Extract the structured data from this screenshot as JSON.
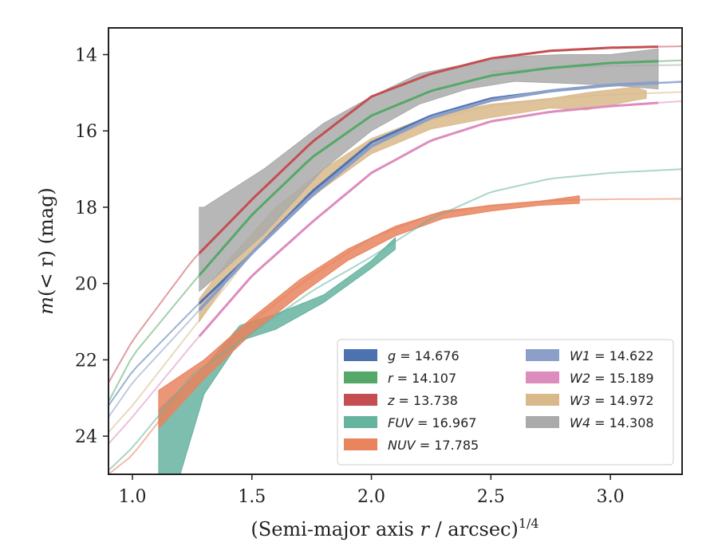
{
  "chart_data": {
    "type": "line",
    "xlabel_main": "(Semi-major axis ",
    "xlabel_var": "r",
    "xlabel_unit": " / arcsec)",
    "xlabel_exp": "1/4",
    "ylabel_main": "m",
    "ylabel_rest": "(< r) (mag)",
    "xlim": [
      0.9,
      3.3
    ],
    "ylim": [
      25.0,
      13.3
    ],
    "y_inverted": true,
    "xticks": [
      1.0,
      1.5,
      2.0,
      2.5,
      3.0
    ],
    "xtick_labels": [
      "1.0",
      "1.5",
      "2.0",
      "2.5",
      "3.0"
    ],
    "yticks": [
      14,
      16,
      18,
      20,
      22,
      24
    ],
    "ytick_labels": [
      "14",
      "16",
      "18",
      "20",
      "22",
      "24"
    ],
    "grid": false,
    "legend_position": "bottom-right",
    "series": [
      {
        "name": "g = 14.676",
        "band": "g",
        "mag": "14.676",
        "color": "#4c72b0",
        "model": [
          [
            0.9,
            23.2
          ],
          [
            1.0,
            22.3
          ],
          [
            1.25,
            20.7
          ],
          [
            1.5,
            19.2
          ],
          [
            1.75,
            17.6
          ],
          [
            2.0,
            16.3
          ],
          [
            2.25,
            15.6
          ],
          [
            2.5,
            15.15
          ],
          [
            2.75,
            14.95
          ],
          [
            3.0,
            14.8
          ],
          [
            3.3,
            14.72
          ]
        ],
        "data_x": [
          1.28,
          3.2
        ],
        "width": 3
      },
      {
        "name": "r = 14.107",
        "band": "r",
        "mag": "14.107",
        "color": "#55a868",
        "model": [
          [
            0.9,
            23.1
          ],
          [
            1.0,
            21.9
          ],
          [
            1.25,
            20.0
          ],
          [
            1.5,
            18.2
          ],
          [
            1.75,
            16.7
          ],
          [
            2.0,
            15.6
          ],
          [
            2.25,
            14.95
          ],
          [
            2.5,
            14.55
          ],
          [
            2.75,
            14.35
          ],
          [
            3.0,
            14.22
          ],
          [
            3.3,
            14.15
          ]
        ],
        "data_x": [
          1.28,
          3.2
        ],
        "width": 3
      },
      {
        "name": "z = 13.738",
        "band": "z",
        "mag": "13.738",
        "color": "#c44e52",
        "model": [
          [
            0.9,
            22.6
          ],
          [
            1.0,
            21.5
          ],
          [
            1.25,
            19.4
          ],
          [
            1.5,
            17.8
          ],
          [
            1.75,
            16.3
          ],
          [
            2.0,
            15.1
          ],
          [
            2.25,
            14.5
          ],
          [
            2.5,
            14.1
          ],
          [
            2.75,
            13.9
          ],
          [
            3.0,
            13.82
          ],
          [
            3.3,
            13.78
          ]
        ],
        "data_x": [
          1.28,
          3.2
        ],
        "width": 3
      },
      {
        "name": "FUV = 16.967",
        "band": "FUV",
        "mag": "16.967",
        "color": "#66b3a0",
        "model": [
          [
            0.9,
            24.9
          ],
          [
            1.0,
            24.3
          ],
          [
            1.25,
            22.4
          ],
          [
            1.5,
            21.3
          ],
          [
            1.75,
            20.2
          ],
          [
            2.0,
            19.3
          ],
          [
            2.25,
            18.3
          ],
          [
            2.5,
            17.6
          ],
          [
            2.75,
            17.25
          ],
          [
            3.0,
            17.1
          ],
          [
            3.3,
            17.0
          ]
        ],
        "band_upper": [
          [
            1.11,
            23.3
          ],
          [
            1.3,
            22.2
          ],
          [
            1.45,
            21.1
          ],
          [
            1.6,
            20.8
          ],
          [
            1.8,
            20.3
          ],
          [
            2.0,
            19.4
          ],
          [
            2.1,
            18.8
          ]
        ],
        "band_lower": [
          [
            1.11,
            25.0
          ],
          [
            1.2,
            25.0
          ],
          [
            1.3,
            22.9
          ],
          [
            1.45,
            21.5
          ],
          [
            1.6,
            21.2
          ],
          [
            1.8,
            20.5
          ],
          [
            2.0,
            19.6
          ],
          [
            2.1,
            19.1
          ]
        ]
      },
      {
        "name": "NUV = 17.785",
        "band": "NUV",
        "mag": "17.785",
        "color": "#e8845e",
        "model": [
          [
            0.9,
            25.0
          ],
          [
            1.0,
            24.5
          ],
          [
            1.25,
            22.5
          ],
          [
            1.5,
            21.0
          ],
          [
            1.75,
            19.8
          ],
          [
            2.0,
            18.8
          ],
          [
            2.25,
            18.2
          ],
          [
            2.5,
            17.95
          ],
          [
            2.75,
            17.82
          ],
          [
            3.0,
            17.79
          ],
          [
            3.3,
            17.78
          ]
        ],
        "band_upper": [
          [
            1.11,
            22.8
          ],
          [
            1.3,
            22.0
          ],
          [
            1.5,
            20.9
          ],
          [
            1.7,
            19.9
          ],
          [
            1.9,
            19.1
          ],
          [
            2.1,
            18.5
          ],
          [
            2.3,
            18.1
          ],
          [
            2.5,
            17.95
          ],
          [
            2.7,
            17.85
          ],
          [
            2.87,
            17.7
          ]
        ],
        "band_lower": [
          [
            1.11,
            23.8
          ],
          [
            1.3,
            22.5
          ],
          [
            1.5,
            21.3
          ],
          [
            1.7,
            20.3
          ],
          [
            1.9,
            19.4
          ],
          [
            2.1,
            18.75
          ],
          [
            2.3,
            18.3
          ],
          [
            2.5,
            18.1
          ],
          [
            2.7,
            17.95
          ],
          [
            2.87,
            17.9
          ]
        ]
      },
      {
        "name": "W1 = 14.622",
        "band": "W1",
        "mag": "14.622",
        "color": "#8c9fc8",
        "model": [
          [
            0.9,
            23.5
          ],
          [
            1.0,
            22.6
          ],
          [
            1.25,
            20.9
          ],
          [
            1.5,
            19.2
          ],
          [
            1.75,
            17.7
          ],
          [
            2.0,
            16.4
          ],
          [
            2.25,
            15.65
          ],
          [
            2.5,
            15.2
          ],
          [
            2.75,
            14.95
          ],
          [
            3.0,
            14.8
          ],
          [
            3.3,
            14.7
          ]
        ],
        "data_x": [
          1.28,
          3.2
        ],
        "width": 4
      },
      {
        "name": "W2 = 15.189",
        "band": "W2",
        "mag": "15.189",
        "color": "#dd8cbe",
        "model": [
          [
            0.9,
            24.2
          ],
          [
            1.0,
            23.5
          ],
          [
            1.25,
            21.6
          ],
          [
            1.5,
            19.8
          ],
          [
            1.75,
            18.4
          ],
          [
            2.0,
            17.1
          ],
          [
            2.25,
            16.25
          ],
          [
            2.5,
            15.75
          ],
          [
            2.75,
            15.5
          ],
          [
            3.0,
            15.35
          ],
          [
            3.3,
            15.22
          ]
        ],
        "data_x": [
          1.28,
          3.2
        ],
        "width": 3
      },
      {
        "name": "W3 = 14.972",
        "band": "W3",
        "mag": "14.972",
        "color": "#d9b98a",
        "model": [
          [
            0.9,
            23.9
          ],
          [
            1.0,
            23.2
          ],
          [
            1.25,
            21.2
          ],
          [
            1.5,
            19.2
          ],
          [
            1.75,
            17.6
          ],
          [
            2.0,
            16.4
          ],
          [
            2.25,
            15.7
          ],
          [
            2.5,
            15.35
          ],
          [
            2.75,
            15.15
          ],
          [
            3.0,
            15.05
          ],
          [
            3.3,
            14.98
          ]
        ],
        "band_upper": [
          [
            1.28,
            20.4
          ],
          [
            1.4,
            19.4
          ],
          [
            1.6,
            18.0
          ],
          [
            1.8,
            17.0
          ],
          [
            2.0,
            16.2
          ],
          [
            2.25,
            15.6
          ],
          [
            2.5,
            15.3
          ],
          [
            2.75,
            15.15
          ],
          [
            2.9,
            15.0
          ],
          [
            3.1,
            14.85
          ],
          [
            3.15,
            14.95
          ]
        ],
        "band_lower": [
          [
            1.28,
            21.0
          ],
          [
            1.4,
            19.9
          ],
          [
            1.6,
            18.5
          ],
          [
            1.8,
            17.5
          ],
          [
            2.0,
            16.6
          ],
          [
            2.25,
            15.95
          ],
          [
            2.5,
            15.65
          ],
          [
            2.75,
            15.4
          ],
          [
            2.9,
            15.45
          ],
          [
            3.1,
            15.2
          ],
          [
            3.15,
            15.15
          ]
        ]
      },
      {
        "name": "W4 = 14.308",
        "band": "W4",
        "mag": "14.308",
        "color": "#aaaaaa",
        "model": [
          [
            2.5,
            14.45
          ],
          [
            2.75,
            14.35
          ],
          [
            3.0,
            14.3
          ],
          [
            3.3,
            14.27
          ]
        ],
        "band_upper": [
          [
            1.28,
            18.0
          ],
          [
            1.3,
            18.0
          ],
          [
            1.55,
            17.0
          ],
          [
            1.8,
            15.8
          ],
          [
            2.0,
            15.1
          ],
          [
            2.2,
            14.5
          ],
          [
            2.4,
            14.25
          ],
          [
            2.6,
            14.05
          ],
          [
            2.8,
            14.0
          ],
          [
            3.0,
            14.0
          ],
          [
            3.2,
            13.85
          ]
        ],
        "band_lower": [
          [
            1.28,
            20.2
          ],
          [
            1.3,
            20.1
          ],
          [
            1.55,
            18.7
          ],
          [
            1.8,
            17.0
          ],
          [
            2.0,
            16.0
          ],
          [
            2.2,
            15.3
          ],
          [
            2.4,
            14.9
          ],
          [
            2.6,
            14.7
          ],
          [
            2.8,
            14.75
          ],
          [
            3.0,
            14.8
          ],
          [
            3.2,
            14.9
          ]
        ]
      }
    ]
  }
}
